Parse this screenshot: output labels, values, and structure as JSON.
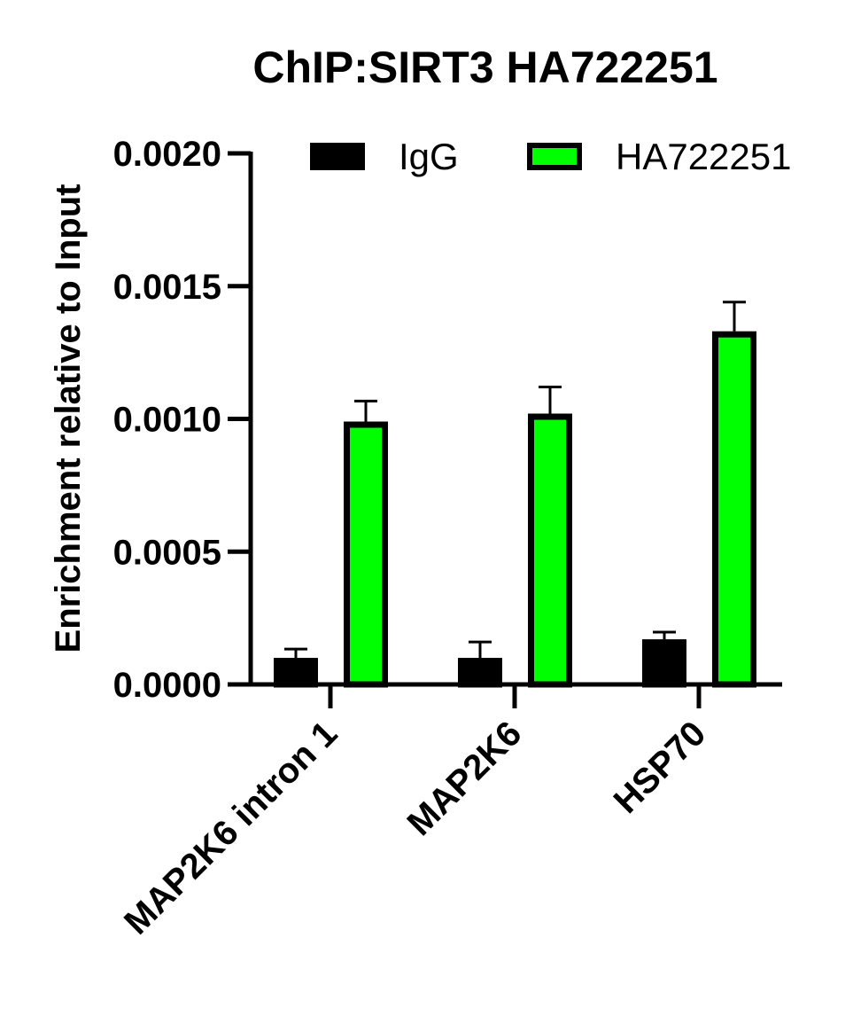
{
  "chart_data": {
    "type": "bar",
    "title": "ChIP:SIRT3 HA722251",
    "y_label": "Enrichment relative to Input",
    "categories": [
      "MAP2K6 intron 1",
      "MAP2K6",
      "HSP70"
    ],
    "series": [
      {
        "name": "IgG",
        "color": "#000000",
        "values": [
          0.0001,
          0.0001,
          0.00017
        ],
        "errors": [
          3.3e-05,
          6e-05,
          2.7e-05
        ]
      },
      {
        "name": "HA722251",
        "color": "#00ff00",
        "values": [
          0.00099,
          0.00102,
          0.00133
        ],
        "errors": [
          7.7e-05,
          0.0001,
          0.00011
        ]
      }
    ],
    "ylim": [
      0,
      0.002
    ],
    "yticks": [
      {
        "value": 0,
        "label": "0.0000"
      },
      {
        "value": 0.0005,
        "label": "0.0005"
      },
      {
        "value": 0.001,
        "label": "0.0010"
      },
      {
        "value": 0.0015,
        "label": "0.0015"
      },
      {
        "value": 0.002,
        "label": "0.0020"
      }
    ],
    "legend": "top"
  }
}
